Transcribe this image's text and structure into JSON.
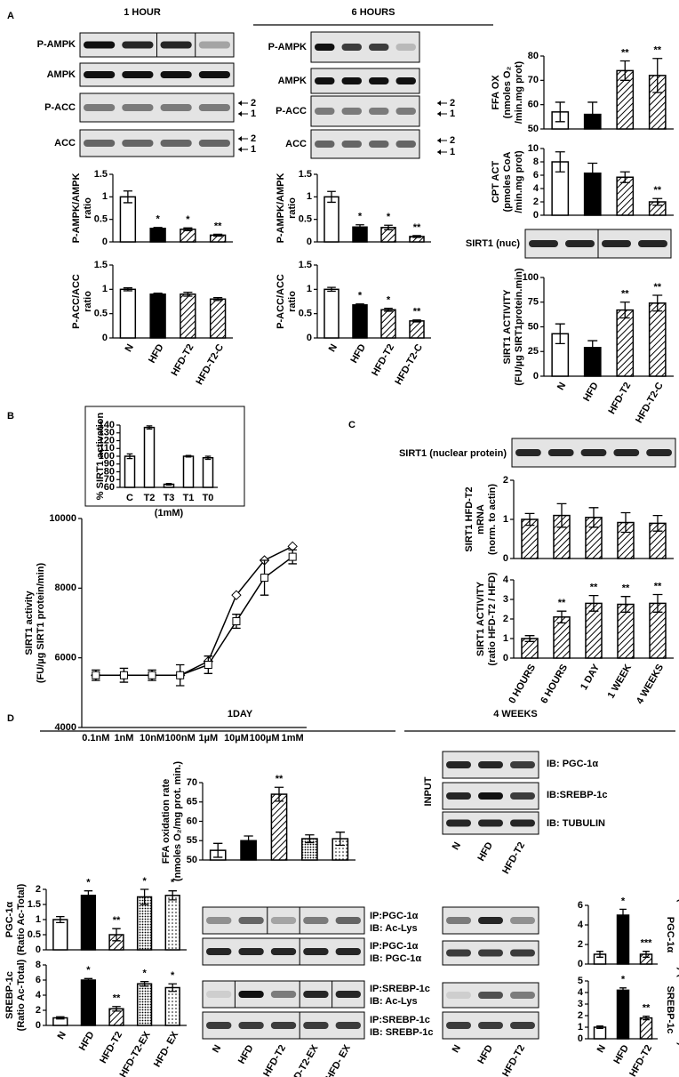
{
  "texts": {
    "A": "A",
    "B": "B",
    "C": "C",
    "D": "D",
    "hour1": "1 HOUR",
    "hours6": "6 HOURS",
    "day1": "1DAY",
    "weeks4": "4 WEEKS",
    "pampk1": "P-AMPK",
    "ampk1": "AMPK",
    "pacc1": "P-ACC",
    "acc1": "ACC",
    "pampk6": "P-AMPK",
    "ampk6": "AMPK",
    "pacc6": "P-ACC",
    "acc6": "ACC",
    "arrow_labels": [
      "2",
      "1",
      "2",
      "1",
      "2",
      "1",
      "2",
      "1"
    ],
    "sirt1nuc": "SIRT1 (nuc)",
    "sirt1np": "SIRT1 (nuclear protein)",
    "input": "INPUT",
    "ib_pgc": "IB: PGC-1α",
    "ib_srebp": "IB:SREBP-1c",
    "ib_tub": "IB: TUBULIN",
    "ip_pgc_ac": [
      "IP:PGC-1α",
      "IB: Ac-Lys"
    ],
    "ip_pgc_pgc": [
      "IP:PGC-1α",
      "IB: PGC-1α"
    ],
    "ip_srebp_ac": [
      "IP:SREBP-1c",
      "IB: Ac-Lys"
    ],
    "ip_srebp_srebp": [
      "IP:SREBP-1c",
      "IB: SREBP-1c"
    ],
    "input_categories": [
      "N",
      "HFD",
      "HFD-T2"
    ],
    "mid_categories": [
      "N",
      "HFD",
      "HFD-T2",
      "HFD-T2-EX",
      "HFD- EX"
    ],
    "right_categories": [
      "N",
      "HFD",
      "HFD-T2"
    ]
  },
  "chart_data": [
    {
      "type": "bar",
      "ylabel": [
        "P-AMPK/AMPK",
        "ratio"
      ],
      "values": [
        1,
        0.3,
        0.28,
        0.15
      ],
      "errors": [
        0.13,
        0.02,
        0.03,
        0.02
      ],
      "patterns": [
        "open",
        "solid",
        "hatch",
        "hatch"
      ],
      "annotations": [
        null,
        "*",
        "*",
        "**"
      ],
      "ylim": [
        0,
        1.5
      ],
      "yticks": [
        0,
        0.5,
        1,
        1.5
      ]
    },
    {
      "type": "bar",
      "ylabel": [
        "P-ACC/ACC",
        "ratio"
      ],
      "categories": [
        "N",
        "HFD",
        "HFD-T2",
        "HFD-T2-C"
      ],
      "values": [
        1,
        0.9,
        0.9,
        0.8
      ],
      "errors": [
        0.03,
        0.02,
        0.04,
        0.03
      ],
      "patterns": [
        "open",
        "solid",
        "hatch",
        "hatch"
      ],
      "ylim": [
        0,
        1.5
      ],
      "yticks": [
        0,
        0.5,
        1,
        1.5
      ]
    },
    {
      "type": "bar",
      "ylabel": [
        "P-AMPK/AMPK",
        "ratio"
      ],
      "values": [
        1,
        0.33,
        0.32,
        0.12
      ],
      "errors": [
        0.12,
        0.05,
        0.05,
        0.02
      ],
      "patterns": [
        "open",
        "solid",
        "hatch",
        "hatch"
      ],
      "annotations": [
        null,
        "*",
        "*",
        "**"
      ],
      "ylim": [
        0,
        1.5
      ],
      "yticks": [
        0,
        0.5,
        1,
        1.5
      ]
    },
    {
      "type": "bar",
      "ylabel": [
        "P-ACC/ACC",
        "ratio"
      ],
      "categories": [
        "N",
        "HFD",
        "HFD-T2",
        "HFD-T2-C"
      ],
      "values": [
        1,
        0.68,
        0.58,
        0.35
      ],
      "errors": [
        0.04,
        0.02,
        0.03,
        0.02
      ],
      "patterns": [
        "open",
        "solid",
        "hatch",
        "hatch"
      ],
      "annotations": [
        null,
        "*",
        "*",
        "**"
      ],
      "ylim": [
        0,
        1.5
      ],
      "yticks": [
        0,
        0.5,
        1,
        1.5
      ]
    },
    {
      "type": "bar",
      "ylabel": [
        "FFA OX",
        "(nmoles O₂",
        "/min.mg prot)"
      ],
      "values": [
        57,
        56,
        74,
        72
      ],
      "errors": [
        4,
        5,
        4,
        7
      ],
      "patterns": [
        "open",
        "solid",
        "hatch",
        "hatch"
      ],
      "annotations": [
        null,
        null,
        "**",
        "**"
      ],
      "ylim": [
        50,
        80
      ],
      "yticks": [
        50,
        60,
        70,
        80
      ]
    },
    {
      "type": "bar",
      "ylabel": [
        "CPT ACT",
        "(pmoles CoA",
        "/min.mg prot)"
      ],
      "values": [
        8,
        6.3,
        5.7,
        2
      ],
      "errors": [
        1.5,
        1.5,
        0.8,
        0.5
      ],
      "patterns": [
        "open",
        "solid",
        "hatch",
        "hatch"
      ],
      "annotations": [
        null,
        null,
        null,
        "**"
      ],
      "ylim": [
        0,
        10
      ],
      "yticks": [
        0,
        2,
        4,
        6,
        8,
        10
      ]
    },
    {
      "type": "bar",
      "ylabel": [
        "SIRT1 ACTIVITY",
        "(FU/µg SIRT1protein.min)"
      ],
      "categories": [
        "N",
        "HFD",
        "HFD-T2",
        "HFD-T2-C"
      ],
      "values": [
        43,
        29,
        67,
        74
      ],
      "errors": [
        10,
        7,
        8,
        8
      ],
      "patterns": [
        "open",
        "solid",
        "hatch",
        "hatch"
      ],
      "annotations": [
        null,
        null,
        "**",
        "**"
      ],
      "ylim": [
        0,
        100
      ],
      "yticks": [
        0,
        25,
        50,
        75,
        100
      ]
    },
    {
      "type": "bar",
      "ylabel": [
        "% SIRT1 activation"
      ],
      "xlabel": "(1mM)",
      "categories": [
        "C",
        "T2",
        "T3",
        "T1",
        "T0"
      ],
      "values": [
        100,
        137,
        64,
        100,
        98
      ],
      "errors": [
        3,
        2,
        1,
        1,
        2
      ],
      "patterns": [
        "open",
        "open",
        "open",
        "open",
        "open"
      ],
      "ylim": [
        60,
        140
      ],
      "yticks": [
        60,
        70,
        80,
        90,
        100,
        110,
        120,
        130,
        140
      ]
    },
    {
      "type": "line",
      "ylabel": [
        "SIRT1 activity",
        "(FU/µg SIRT1 protein/min)"
      ],
      "categories": [
        "0.1nM",
        "1nM",
        "10nM",
        "100nM",
        "1µM",
        "10µM",
        "100µM",
        "1mM"
      ],
      "series": [
        {
          "marker": "diamond",
          "values": [
            5500,
            5500,
            5500,
            5500,
            5900,
            7800,
            8800,
            9200
          ]
        },
        {
          "marker": "square",
          "values": [
            5500,
            5500,
            5500,
            5500,
            5800,
            7050,
            8300,
            8900
          ],
          "errors": [
            150,
            200,
            150,
            300,
            250,
            200,
            500,
            200
          ]
        }
      ],
      "ylim": [
        4000,
        10000
      ],
      "yticks": [
        4000,
        6000,
        8000,
        10000
      ]
    },
    {
      "type": "bar",
      "ylabel": [
        "SIRT1 HFD-T2",
        "mRNA",
        "(norm. to actin)"
      ],
      "values": [
        1,
        1.1,
        1.05,
        0.92,
        0.9
      ],
      "errors": [
        0.15,
        0.3,
        0.25,
        0.25,
        0.2
      ],
      "patterns": [
        "hatch",
        "hatch",
        "hatch",
        "hatch",
        "hatch"
      ],
      "ylim": [
        0,
        2
      ],
      "yticks": [
        0,
        1,
        2
      ]
    },
    {
      "type": "bar",
      "ylabel": [
        "SIRT1  ACTIVITY",
        "(ratio HFD-T2 / HFD)"
      ],
      "categories": [
        "0 HOURS",
        "6 HOURS",
        "1 DAY",
        "1 WEEK",
        "4 WEEKS"
      ],
      "values": [
        1,
        2.1,
        2.8,
        2.75,
        2.8
      ],
      "errors": [
        0.15,
        0.3,
        0.4,
        0.4,
        0.45
      ],
      "patterns": [
        "hatch",
        "hatch",
        "hatch",
        "hatch",
        "hatch"
      ],
      "annotations": [
        null,
        "**",
        "**",
        "**",
        "**"
      ],
      "ylim": [
        0,
        4
      ],
      "yticks": [
        0,
        1,
        2,
        3,
        4
      ]
    },
    {
      "type": "bar",
      "ylabel": [
        "FFA oxidation rate",
        "(nmoles O₂/mg prot. min.)"
      ],
      "values": [
        52.5,
        55,
        67,
        55.5,
        55.5
      ],
      "errors": [
        1.8,
        1.2,
        1.8,
        1,
        1.7
      ],
      "patterns": [
        "open",
        "solid",
        "hatch",
        "dense-dots",
        "dots"
      ],
      "annotations": [
        null,
        null,
        "**",
        null,
        null
      ],
      "ylim": [
        50,
        70
      ],
      "yticks": [
        50,
        55,
        60,
        65,
        70
      ]
    },
    {
      "type": "bar",
      "ylabel": [
        "PGC-1α",
        "(Ratio  Ac-Total)"
      ],
      "values": [
        1,
        1.8,
        0.5,
        1.75,
        1.8
      ],
      "errors": [
        0.1,
        0.15,
        0.2,
        0.25,
        0.15
      ],
      "patterns": [
        "open",
        "solid",
        "hatch",
        "dense-dots",
        "dots"
      ],
      "annotations": [
        null,
        "*",
        "**",
        "*",
        "*"
      ],
      "ylim": [
        0,
        2
      ],
      "yticks": [
        0,
        0.5,
        1,
        1.5,
        2
      ]
    },
    {
      "type": "bar",
      "ylabel": [
        "SREBP-1c",
        "(Ratio  Ac-Total)"
      ],
      "categories": [
        "N",
        "HFD",
        "HFD-T2",
        "HFD-T2-EX",
        "HFD- EX"
      ],
      "values": [
        1,
        6,
        2.2,
        5.5,
        5
      ],
      "errors": [
        0.15,
        0.2,
        0.3,
        0.3,
        0.5
      ],
      "patterns": [
        "open",
        "solid",
        "hatch",
        "dense-dots",
        "dots"
      ],
      "annotations": [
        null,
        "*",
        "**",
        "*",
        "*"
      ],
      "ylim": [
        0,
        8
      ],
      "yticks": [
        0,
        2,
        4,
        6,
        8
      ]
    },
    {
      "type": "bar",
      "ylabel": [
        "PGC-1α",
        "(Ratio  Ac-Total)"
      ],
      "values": [
        1,
        5,
        1
      ],
      "errors": [
        0.3,
        0.6,
        0.3
      ],
      "patterns": [
        "open",
        "solid",
        "hatch"
      ],
      "annotations": [
        null,
        "*",
        "***"
      ],
      "ylim": [
        0,
        6
      ],
      "yticks": [
        0,
        2,
        4,
        6
      ]
    },
    {
      "type": "bar",
      "ylabel": [
        "SREBP-1c",
        "(Ratio  Ac-Total)"
      ],
      "categories": [
        "N",
        "HFD",
        "HFD-T2"
      ],
      "values": [
        1,
        4.2,
        1.8
      ],
      "errors": [
        0.1,
        0.2,
        0.15
      ],
      "patterns": [
        "open",
        "solid",
        "hatch"
      ],
      "annotations": [
        null,
        "*",
        "**"
      ],
      "ylim": [
        0,
        5
      ],
      "yticks": [
        0,
        1,
        2,
        3,
        4,
        5
      ]
    }
  ]
}
